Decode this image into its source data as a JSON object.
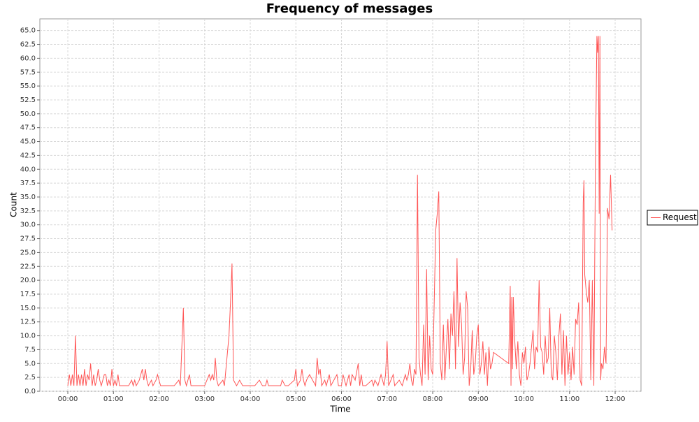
{
  "chart_data": {
    "type": "line",
    "title": "Frequency of messages",
    "x_label": "Time",
    "y_label": "Count",
    "xlim": [
      -36.8,
      754
    ],
    "ylim": [
      0,
      67.1
    ],
    "xticks": [
      {
        "value": 0,
        "label": "00:00"
      },
      {
        "value": 60,
        "label": "01:00"
      },
      {
        "value": 120,
        "label": "02:00"
      },
      {
        "value": 180,
        "label": "03:00"
      },
      {
        "value": 240,
        "label": "04:00"
      },
      {
        "value": 300,
        "label": "05:00"
      },
      {
        "value": 360,
        "label": "06:00"
      },
      {
        "value": 420,
        "label": "07:00"
      },
      {
        "value": 480,
        "label": "08:00"
      },
      {
        "value": 540,
        "label": "09:00"
      },
      {
        "value": 600,
        "label": "10:00"
      },
      {
        "value": 660,
        "label": "11:00"
      },
      {
        "value": 720,
        "label": "12:00"
      }
    ],
    "yticks": [
      {
        "value": 0,
        "label": "0.0"
      },
      {
        "value": 2.5,
        "label": "2.5"
      },
      {
        "value": 5,
        "label": "5.0"
      },
      {
        "value": 7.5,
        "label": "7.5"
      },
      {
        "value": 10,
        "label": "10.0"
      },
      {
        "value": 12.5,
        "label": "12.5"
      },
      {
        "value": 15,
        "label": "15.0"
      },
      {
        "value": 17.5,
        "label": "17.5"
      },
      {
        "value": 20,
        "label": "20.0"
      },
      {
        "value": 22.5,
        "label": "22.5"
      },
      {
        "value": 25,
        "label": "25.0"
      },
      {
        "value": 27.5,
        "label": "27.5"
      },
      {
        "value": 30,
        "label": "30.0"
      },
      {
        "value": 32.5,
        "label": "32.5"
      },
      {
        "value": 35,
        "label": "35.0"
      },
      {
        "value": 37.5,
        "label": "37.5"
      },
      {
        "value": 40,
        "label": "40.0"
      },
      {
        "value": 42.5,
        "label": "42.5"
      },
      {
        "value": 45,
        "label": "45.0"
      },
      {
        "value": 47.5,
        "label": "47.5"
      },
      {
        "value": 50,
        "label": "50.0"
      },
      {
        "value": 52.5,
        "label": "52.5"
      },
      {
        "value": 55,
        "label": "55.0"
      },
      {
        "value": 57.5,
        "label": "57.5"
      },
      {
        "value": 60,
        "label": "60.0"
      },
      {
        "value": 62.5,
        "label": "62.5"
      },
      {
        "value": 65,
        "label": "65.0"
      }
    ],
    "grid": true,
    "legend": "right",
    "x": [
      0,
      2,
      4,
      6,
      8,
      10,
      12,
      14,
      16,
      18,
      20,
      22,
      24,
      26,
      28,
      30,
      32,
      34,
      36,
      38,
      40,
      42,
      44,
      46,
      48,
      50,
      52,
      54,
      56,
      58,
      60,
      62,
      64,
      66,
      68,
      70,
      80,
      84,
      86,
      88,
      90,
      94,
      96,
      98,
      100,
      102,
      104,
      106,
      110,
      112,
      116,
      118,
      120,
      122,
      140,
      146,
      148,
      152,
      154,
      156,
      160,
      162,
      180,
      186,
      188,
      190,
      192,
      194,
      196,
      198,
      204,
      206,
      212,
      214,
      216,
      218,
      222,
      226,
      230,
      236,
      246,
      252,
      256,
      260,
      262,
      264,
      280,
      282,
      286,
      290,
      298,
      300,
      302,
      306,
      308,
      310,
      312,
      314,
      318,
      322,
      326,
      328,
      330,
      332,
      334,
      338,
      340,
      344,
      346,
      350,
      354,
      356,
      360,
      362,
      364,
      366,
      370,
      372,
      374,
      378,
      382,
      384,
      386,
      388,
      392,
      400,
      402,
      404,
      408,
      412,
      414,
      416,
      418,
      420,
      422,
      428,
      430,
      436,
      440,
      444,
      446,
      448,
      450,
      452,
      454,
      456,
      458,
      460,
      462,
      464,
      466,
      468,
      470,
      472,
      474,
      476,
      478,
      480,
      482,
      484,
      486,
      488,
      490,
      492,
      494,
      496,
      498,
      500,
      502,
      504,
      506,
      508,
      510,
      512,
      514,
      516,
      518,
      520,
      522,
      524,
      526,
      528,
      530,
      532,
      534,
      536,
      538,
      540,
      542,
      544,
      546,
      548,
      550,
      552,
      554,
      556,
      558,
      560,
      580,
      582,
      583,
      584,
      585,
      586,
      588,
      590,
      592,
      594,
      596,
      598,
      600,
      602,
      604,
      606,
      608,
      610,
      612,
      614,
      616,
      618,
      620,
      622,
      624,
      626,
      628,
      630,
      632,
      634,
      636,
      638,
      640,
      642,
      644,
      646,
      648,
      650,
      652,
      654,
      656,
      658,
      660,
      662,
      664,
      666,
      668,
      670,
      672,
      674,
      676,
      678,
      679,
      680,
      682,
      684,
      686,
      688,
      690,
      692,
      694,
      696,
      697,
      698,
      699,
      700,
      701,
      702,
      704,
      706,
      708,
      710,
      712,
      714,
      716
    ],
    "series": [
      {
        "name": "Request",
        "color": "#ff5555",
        "values": [
          1,
          3,
          1,
          3,
          1,
          10,
          1,
          3,
          1,
          3,
          1,
          4,
          1,
          3,
          2,
          5,
          1,
          3,
          1,
          2,
          4,
          2,
          1,
          2,
          3,
          3,
          1,
          2,
          1,
          4,
          1,
          2,
          1,
          3,
          1,
          1,
          1,
          2,
          1,
          2,
          1,
          2,
          3,
          4,
          2,
          4,
          2,
          1,
          2,
          1,
          2,
          3,
          2,
          1,
          1,
          2,
          1,
          15,
          2,
          1,
          3,
          1,
          1,
          3,
          2,
          3,
          2,
          6,
          2,
          1,
          2,
          1,
          10,
          16,
          23,
          2,
          1,
          2,
          1,
          1,
          1,
          2,
          1,
          1,
          2,
          1,
          1,
          2,
          1,
          1,
          2,
          4,
          1,
          2,
          4,
          2,
          1,
          2,
          3,
          2,
          1,
          6,
          3,
          4,
          1,
          2,
          1,
          3,
          1,
          2,
          3,
          1,
          1,
          3,
          2,
          1,
          3,
          1,
          3,
          2,
          5,
          1,
          3,
          1,
          1,
          2,
          1,
          2,
          1,
          3,
          2,
          1,
          3,
          9,
          1,
          3,
          1,
          2,
          1,
          3,
          2,
          3,
          5,
          2,
          1,
          4,
          3,
          39,
          6,
          3,
          1,
          12,
          3,
          22,
          2,
          10,
          4,
          3,
          16,
          29,
          32,
          36,
          5,
          2,
          12,
          2,
          8,
          13,
          4,
          14,
          10,
          18,
          4,
          24,
          8,
          16,
          12,
          3,
          6,
          18,
          15,
          1,
          4,
          11,
          3,
          5,
          10,
          12,
          3,
          5,
          9,
          3,
          7,
          1,
          8,
          4,
          5,
          7,
          5,
          19,
          1,
          17,
          4,
          17,
          9,
          4,
          9,
          3,
          1,
          7,
          5,
          8,
          2,
          3,
          5,
          8,
          11,
          4,
          8,
          7,
          20,
          8,
          7,
          3,
          10,
          5,
          6,
          15,
          3,
          2,
          10,
          7,
          2,
          10,
          14,
          3,
          11,
          1,
          10,
          3,
          7,
          2,
          8,
          3,
          13,
          12,
          16,
          2,
          1,
          34,
          38,
          21,
          18,
          16,
          20,
          2,
          20,
          1,
          40,
          64,
          61,
          64,
          32,
          64,
          2,
          5,
          4,
          8,
          5,
          33,
          31,
          39,
          29
        ]
      }
    ]
  }
}
